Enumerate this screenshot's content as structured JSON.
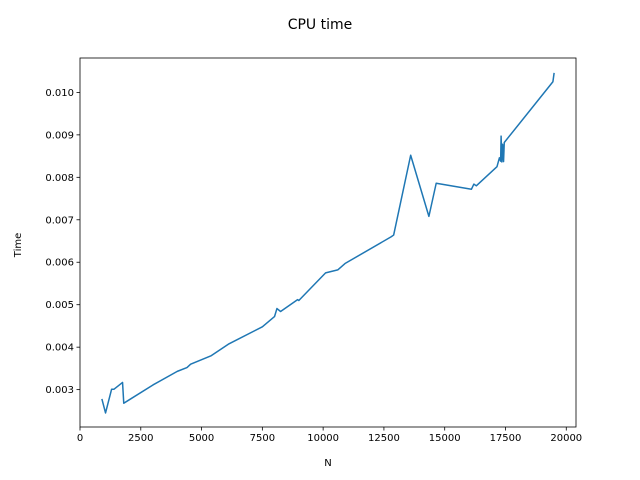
{
  "chart_data": {
    "type": "line",
    "title": "CPU time",
    "xlabel": "N",
    "ylabel": "Time",
    "xlim": [
      0,
      20400
    ],
    "ylim": [
      0.00212,
      0.01081
    ],
    "xticks": [
      0,
      2500,
      5000,
      7500,
      10000,
      12500,
      15000,
      17500,
      20000
    ],
    "xtick_labels": [
      "0",
      "2500",
      "5000",
      "7500",
      "10000",
      "12500",
      "15000",
      "17500",
      "20000"
    ],
    "yticks": [
      0.003,
      0.004,
      0.005,
      0.006,
      0.007,
      0.008,
      0.009,
      0.01
    ],
    "ytick_labels": [
      "0.003",
      "0.004",
      "0.005",
      "0.006",
      "0.007",
      "0.008",
      "0.009",
      "0.010"
    ],
    "grid": false,
    "line_color": "#1f77b4",
    "series": [
      {
        "x": [
          900,
          1050,
          1300,
          1400,
          1750,
          1800,
          3000,
          4000,
          4400,
          4550,
          5400,
          6100,
          7500,
          8000,
          8100,
          8250,
          8950,
          9000,
          10100,
          10600,
          10900,
          12800,
          12900,
          13600,
          14350,
          14650,
          16100,
          16200,
          16300,
          17150,
          17250,
          17300,
          17320,
          17350,
          17380,
          17420,
          17450,
          19450,
          19500
        ],
        "y": [
          0.00278,
          0.00245,
          0.00301,
          0.00301,
          0.00317,
          0.00268,
          0.00311,
          0.00343,
          0.00352,
          0.0036,
          0.0038,
          0.00407,
          0.00448,
          0.00472,
          0.00491,
          0.00484,
          0.00512,
          0.0051,
          0.00575,
          0.00582,
          0.00597,
          0.0066,
          0.00664,
          0.00852,
          0.00708,
          0.00786,
          0.00772,
          0.00784,
          0.0078,
          0.00825,
          0.00846,
          0.00838,
          0.00897,
          0.00836,
          0.00878,
          0.00837,
          0.00882,
          0.01025,
          0.01046
        ]
      }
    ]
  }
}
